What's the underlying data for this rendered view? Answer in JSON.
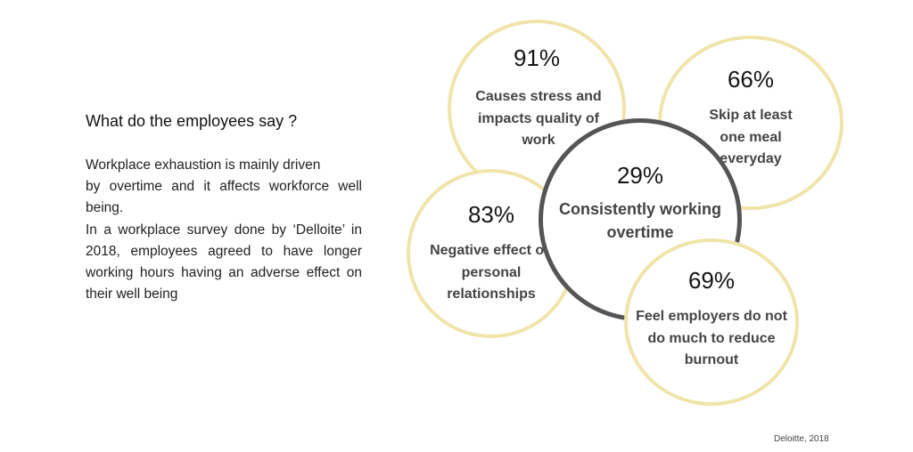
{
  "heading": "What do the employees say ?",
  "body": {
    "line1": "Workplace exhaustion is mainly driven",
    "line2": " by overtime and it affects workforce well being.",
    "line3": "In a workplace survey done by ‘Delloite’ in 2018, employees agreed to have longer working hours having an adverse effect on their well being"
  },
  "bubbles": {
    "stress": {
      "percent": "91%",
      "label": "Causes stress and impacts quality of work"
    },
    "meal": {
      "percent": "66%",
      "label": "Skip at least one meal everyday"
    },
    "relationships": {
      "percent": "83%",
      "label": "Negative effect on personal relationships"
    },
    "overtime": {
      "percent": "29%",
      "label": "Consistently working overtime"
    },
    "burnout": {
      "percent": "69%",
      "label": "Feel employers do not do much to reduce burnout"
    }
  },
  "colors": {
    "outer_ring": "#f0e4aa",
    "center_ring": "#555555"
  },
  "source": "Deloitte, 2018"
}
